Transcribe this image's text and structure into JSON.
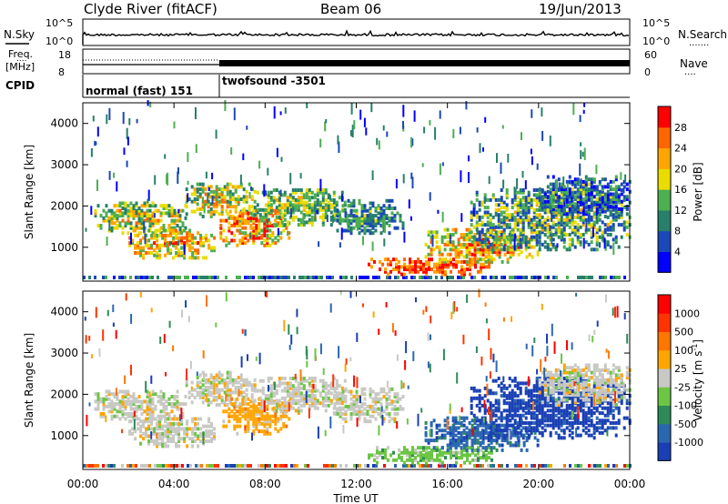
{
  "header": {
    "site": "Clyde River (fitACF)",
    "beam": "Beam 06",
    "date": "19/Jun/2013"
  },
  "panels": {
    "nsky": {
      "left_label": "N.Sky",
      "left_tick_top": "10^5",
      "left_tick_bottom": "10^0",
      "right_tick_top": "10^5",
      "right_tick_bottom": "10^0",
      "right_label": "N.Search",
      "right_dots": "......."
    },
    "freq": {
      "left_label_1": "Freq.",
      "left_label_2": "[MHz]",
      "left_tick_top": "18",
      "left_tick_bottom": "8",
      "right_tick_top": "60",
      "right_tick_bottom": "0",
      "right_label": "Nave",
      "right_dots": "....",
      "marker": "...."
    },
    "cpid": {
      "label": "CPID",
      "mode_1": "normal (fast) 151",
      "mode_2": "twofsound -3501"
    }
  },
  "chart_data": [
    {
      "type": "heatmap",
      "name": "power",
      "ylabel": "Slant Range [km]",
      "ylim": [
        180,
        4500
      ],
      "yticks": [
        "1000",
        "2000",
        "3000",
        "4000"
      ],
      "colorbar": {
        "label": "Power [dB]",
        "ticks": [
          "4",
          "8",
          "12",
          "16",
          "20",
          "24",
          "28"
        ],
        "colors": [
          "#0000ff",
          "#1b48b8",
          "#27806a",
          "#4caf50",
          "#e8dc00",
          "#ffa500",
          "#ff6600",
          "#ff0000"
        ]
      }
    },
    {
      "type": "heatmap",
      "name": "velocity",
      "ylabel": "Slant Range [km]",
      "ylim": [
        180,
        4500
      ],
      "yticks": [
        "1000",
        "2000",
        "3000",
        "4000"
      ],
      "colorbar": {
        "label": "Velocity [m s",
        "label_sup": "-1",
        "label_end": "]",
        "ticks": [
          "1000",
          "500",
          "100",
          "25",
          "-25",
          "-100",
          "-500",
          "-1000"
        ],
        "colors": [
          "#1a3fb5",
          "#2a67b0",
          "#2e8b57",
          "#6cc644",
          "#c8c8c4",
          "#ffa500",
          "#ff7700",
          "#ff3300",
          "#ff0000"
        ]
      }
    }
  ],
  "xaxis": {
    "label": "Time UT",
    "ticks": [
      "00:00",
      "04:00",
      "08:00",
      "12:00",
      "16:00",
      "20:00",
      "00:00"
    ]
  }
}
